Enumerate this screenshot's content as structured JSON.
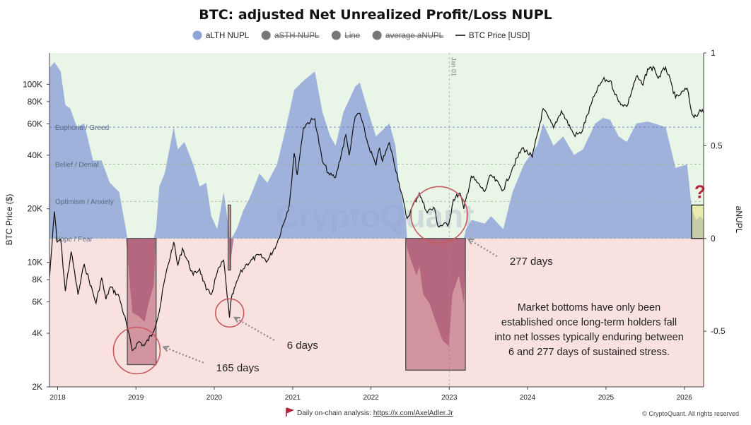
{
  "chart_data": {
    "type": "area",
    "title": "BTC: adjusted Net Unrealized Profit/Loss NUPL",
    "legend": [
      {
        "name": "aLTH NUPL",
        "color": "#8fa3d6",
        "hidden": false,
        "kind": "area"
      },
      {
        "name": "aSTH NUPL",
        "color": "#777777",
        "hidden": true,
        "kind": "dot"
      },
      {
        "name": "Line",
        "color": "#777777",
        "hidden": true,
        "kind": "dot"
      },
      {
        "name": "average aNUPL",
        "color": "#777777",
        "hidden": true,
        "kind": "dot"
      },
      {
        "name": "BTC Price [USD]",
        "color": "#111111",
        "hidden": false,
        "kind": "line"
      }
    ],
    "legend_position": "top-center",
    "x_ticks": [
      "2018",
      "2019",
      "2020",
      "2021",
      "2022",
      "2023",
      "2024",
      "2025",
      "2026"
    ],
    "x_range": [
      "2017-11-24",
      "2026-04-01"
    ],
    "y_left": {
      "label": "BTC Price ($)",
      "scale": "log",
      "range": [
        2000,
        150000
      ],
      "ticks": [
        {
          "v": 2000,
          "t": "2K"
        },
        {
          "v": 4000,
          "t": "4K"
        },
        {
          "v": 6000,
          "t": "6K"
        },
        {
          "v": 8000,
          "t": "8K"
        },
        {
          "v": 10000,
          "t": "10K"
        },
        {
          "v": 20000,
          "t": "20K"
        },
        {
          "v": 40000,
          "t": "40K"
        },
        {
          "v": 60000,
          "t": "60K"
        },
        {
          "v": 80000,
          "t": "80K"
        },
        {
          "v": 100000,
          "t": "100K"
        }
      ]
    },
    "y_right": {
      "label": "aNUPL",
      "scale": "linear",
      "range": [
        -0.8,
        1.0
      ],
      "ticks": [
        {
          "v": 1,
          "t": "1"
        },
        {
          "v": 0.5,
          "t": "0.5"
        },
        {
          "v": 0,
          "t": "0"
        },
        {
          "v": -0.5,
          "t": "-0.5"
        }
      ]
    },
    "zones": [
      {
        "label": "Euphoria / Greed",
        "value": 0.6
      },
      {
        "label": "Belief / Denial",
        "value": 0.4
      },
      {
        "label": "Optimism / Anxiety",
        "value": 0.2
      },
      {
        "label": "Hope / Fear",
        "value": 0.0
      }
    ],
    "zone_colors": {
      "positive_bg": "#e9f5e6",
      "negative_bg": "#f8e1de",
      "area_pos": "#91a6d8",
      "area_neg": "#b06a8e"
    },
    "vline": {
      "date": "2023-01-01",
      "label": "Jan 01"
    },
    "watermark": "CryptoQuant",
    "series": [
      {
        "name": "aLTH NUPL",
        "axis": "right",
        "points": [
          [
            "2017-11-24",
            0.92
          ],
          [
            "2017-12-17",
            0.95
          ],
          [
            "2018-01-15",
            0.9
          ],
          [
            "2018-02-06",
            0.72
          ],
          [
            "2018-03-01",
            0.7
          ],
          [
            "2018-04-01",
            0.6
          ],
          [
            "2018-05-05",
            0.62
          ],
          [
            "2018-06-15",
            0.42
          ],
          [
            "2018-07-25",
            0.42
          ],
          [
            "2018-09-01",
            0.3
          ],
          [
            "2018-10-15",
            0.25
          ],
          [
            "2018-11-15",
            0.05
          ],
          [
            "2018-11-22",
            -0.08
          ],
          [
            "2018-12-15",
            -0.4
          ],
          [
            "2019-01-15",
            -0.42
          ],
          [
            "2019-02-10",
            -0.45
          ],
          [
            "2019-03-01",
            -0.35
          ],
          [
            "2019-03-25",
            -0.25
          ],
          [
            "2019-04-05",
            0.05
          ],
          [
            "2019-04-20",
            0.28
          ],
          [
            "2019-05-15",
            0.35
          ],
          [
            "2019-06-26",
            0.6
          ],
          [
            "2019-07-15",
            0.48
          ],
          [
            "2019-08-15",
            0.52
          ],
          [
            "2019-09-25",
            0.4
          ],
          [
            "2019-10-25",
            0.28
          ],
          [
            "2019-11-25",
            0.3
          ],
          [
            "2019-12-18",
            0.12
          ],
          [
            "2020-01-15",
            0.05
          ],
          [
            "2020-02-14",
            0.25
          ],
          [
            "2020-03-10",
            0.05
          ],
          [
            "2020-03-12",
            -0.18
          ],
          [
            "2020-03-20",
            -0.1
          ],
          [
            "2020-04-01",
            0.02
          ],
          [
            "2020-04-15",
            0.05
          ],
          [
            "2020-05-15",
            0.15
          ],
          [
            "2020-06-15",
            0.22
          ],
          [
            "2020-07-30",
            0.35
          ],
          [
            "2020-09-05",
            0.3
          ],
          [
            "2020-10-20",
            0.4
          ],
          [
            "2020-12-01",
            0.6
          ],
          [
            "2021-01-08",
            0.8
          ],
          [
            "2021-02-20",
            0.85
          ],
          [
            "2021-04-14",
            0.9
          ],
          [
            "2021-05-20",
            0.68
          ],
          [
            "2021-06-25",
            0.55
          ],
          [
            "2021-07-20",
            0.5
          ],
          [
            "2021-08-25",
            0.68
          ],
          [
            "2021-10-20",
            0.82
          ],
          [
            "2021-11-10",
            0.84
          ],
          [
            "2021-12-20",
            0.68
          ],
          [
            "2022-01-24",
            0.55
          ],
          [
            "2022-03-28",
            0.62
          ],
          [
            "2022-04-25",
            0.5
          ],
          [
            "2022-05-12",
            0.3
          ],
          [
            "2022-06-13",
            0.1
          ],
          [
            "2022-06-18",
            -0.05
          ],
          [
            "2022-07-01",
            -0.1
          ],
          [
            "2022-08-01",
            -0.2
          ],
          [
            "2022-08-15",
            -0.15
          ],
          [
            "2022-09-01",
            -0.3
          ],
          [
            "2022-10-01",
            -0.35
          ],
          [
            "2022-11-09",
            -0.48
          ],
          [
            "2022-12-01",
            -0.55
          ],
          [
            "2022-12-30",
            -0.58
          ],
          [
            "2023-01-15",
            -0.3
          ],
          [
            "2023-02-15",
            -0.2
          ],
          [
            "2023-03-10",
            -0.35
          ],
          [
            "2023-03-20",
            0.05
          ],
          [
            "2023-04-15",
            0.1
          ],
          [
            "2023-06-15",
            0.08
          ],
          [
            "2023-07-15",
            0.12
          ],
          [
            "2023-09-10",
            0.05
          ],
          [
            "2023-10-23",
            0.25
          ],
          [
            "2023-12-15",
            0.4
          ],
          [
            "2024-02-15",
            0.5
          ],
          [
            "2024-03-14",
            0.62
          ],
          [
            "2024-05-01",
            0.5
          ],
          [
            "2024-06-15",
            0.55
          ],
          [
            "2024-08-05",
            0.45
          ],
          [
            "2024-09-15",
            0.48
          ],
          [
            "2024-11-12",
            0.62
          ],
          [
            "2024-12-17",
            0.65
          ],
          [
            "2025-01-20",
            0.64
          ],
          [
            "2025-03-01",
            0.55
          ],
          [
            "2025-04-08",
            0.52
          ],
          [
            "2025-05-22",
            0.62
          ],
          [
            "2025-07-14",
            0.63
          ],
          [
            "2025-08-14",
            0.62
          ],
          [
            "2025-10-06",
            0.6
          ],
          [
            "2025-11-21",
            0.38
          ],
          [
            "2026-01-14",
            0.4
          ],
          [
            "2026-02-06",
            0.15
          ],
          [
            "2026-02-25",
            0.1
          ],
          [
            "2026-03-15",
            0.12
          ],
          [
            "2026-04-01",
            0.1
          ]
        ]
      },
      {
        "name": "BTC Price [USD]",
        "axis": "left",
        "points": [
          [
            "2017-11-24",
            8200
          ],
          [
            "2017-12-17",
            19300
          ],
          [
            "2017-12-30",
            13000
          ],
          [
            "2018-01-15",
            13500
          ],
          [
            "2018-02-06",
            6900
          ],
          [
            "2018-03-05",
            11500
          ],
          [
            "2018-04-06",
            6600
          ],
          [
            "2018-05-05",
            9800
          ],
          [
            "2018-06-29",
            5900
          ],
          [
            "2018-07-25",
            8200
          ],
          [
            "2018-08-14",
            6200
          ],
          [
            "2018-09-04",
            7300
          ],
          [
            "2018-10-15",
            6400
          ],
          [
            "2018-11-20",
            4400
          ],
          [
            "2018-12-15",
            3200
          ],
          [
            "2019-01-15",
            3600
          ],
          [
            "2019-02-08",
            3400
          ],
          [
            "2019-03-20",
            4000
          ],
          [
            "2019-04-20",
            5300
          ],
          [
            "2019-05-15",
            8000
          ],
          [
            "2019-06-26",
            13000
          ],
          [
            "2019-07-15",
            9600
          ],
          [
            "2019-08-06",
            12000
          ],
          [
            "2019-09-25",
            8500
          ],
          [
            "2019-10-25",
            9200
          ],
          [
            "2019-11-25",
            7000
          ],
          [
            "2019-12-18",
            6600
          ],
          [
            "2020-01-15",
            8800
          ],
          [
            "2020-02-14",
            10300
          ],
          [
            "2020-03-12",
            4900
          ],
          [
            "2020-03-20",
            6200
          ],
          [
            "2020-04-29",
            8600
          ],
          [
            "2020-06-01",
            9800
          ],
          [
            "2020-07-27",
            11000
          ],
          [
            "2020-09-05",
            10200
          ],
          [
            "2020-10-21",
            12900
          ],
          [
            "2020-12-16",
            21000
          ],
          [
            "2021-01-08",
            41000
          ],
          [
            "2021-01-22",
            31000
          ],
          [
            "2021-02-20",
            57000
          ],
          [
            "2021-03-13",
            61000
          ],
          [
            "2021-04-14",
            64000
          ],
          [
            "2021-05-19",
            37000
          ],
          [
            "2021-06-22",
            31000
          ],
          [
            "2021-07-20",
            30000
          ],
          [
            "2021-09-06",
            52000
          ],
          [
            "2021-09-21",
            40000
          ],
          [
            "2021-10-20",
            66000
          ],
          [
            "2021-11-10",
            69000
          ],
          [
            "2021-12-18",
            46000
          ],
          [
            "2022-01-24",
            35000
          ],
          [
            "2022-02-10",
            44000
          ],
          [
            "2022-02-24",
            37000
          ],
          [
            "2022-03-28",
            47000
          ],
          [
            "2022-05-12",
            28000
          ],
          [
            "2022-06-18",
            17600
          ],
          [
            "2022-07-05",
            19500
          ],
          [
            "2022-08-14",
            24500
          ],
          [
            "2022-09-15",
            19500
          ],
          [
            "2022-10-25",
            20000
          ],
          [
            "2022-11-09",
            16000
          ],
          [
            "2022-12-30",
            16500
          ],
          [
            "2023-01-20",
            22500
          ],
          [
            "2023-02-20",
            24500
          ],
          [
            "2023-03-10",
            20000
          ],
          [
            "2023-04-14",
            30500
          ],
          [
            "2023-06-15",
            25000
          ],
          [
            "2023-07-14",
            31000
          ],
          [
            "2023-09-10",
            25500
          ],
          [
            "2023-10-23",
            34000
          ],
          [
            "2023-12-08",
            44000
          ],
          [
            "2024-01-23",
            39000
          ],
          [
            "2024-03-14",
            73000
          ],
          [
            "2024-05-01",
            57000
          ],
          [
            "2024-06-07",
            71000
          ],
          [
            "2024-08-05",
            52000
          ],
          [
            "2024-09-06",
            53000
          ],
          [
            "2024-11-12",
            89000
          ],
          [
            "2024-12-17",
            106000
          ],
          [
            "2025-01-20",
            105000
          ],
          [
            "2025-02-28",
            80000
          ],
          [
            "2025-04-08",
            75000
          ],
          [
            "2025-05-22",
            111000
          ],
          [
            "2025-06-22",
            99000
          ],
          [
            "2025-07-14",
            122000
          ],
          [
            "2025-08-14",
            124000
          ],
          [
            "2025-09-01",
            108000
          ],
          [
            "2025-10-06",
            125000
          ],
          [
            "2025-11-21",
            84000
          ],
          [
            "2025-12-15",
            88000
          ],
          [
            "2026-01-14",
            95000
          ],
          [
            "2026-02-06",
            68000
          ],
          [
            "2026-02-25",
            66000
          ],
          [
            "2026-03-15",
            72000
          ],
          [
            "2026-04-01",
            69000
          ]
        ]
      }
    ],
    "highlight_boxes": [
      {
        "from": "2018-11-22",
        "to": "2019-04-05",
        "y_from": 0.0,
        "y_to": -0.68,
        "style": "stress"
      },
      {
        "from": "2020-03-06",
        "to": "2020-03-18",
        "y_from": 0.18,
        "y_to": -0.17,
        "style": "stress"
      },
      {
        "from": "2022-06-12",
        "to": "2023-03-17",
        "y_from": 0.0,
        "y_to": -0.71,
        "style": "stress"
      },
      {
        "from": "2026-02-04",
        "to": "2026-04-06",
        "y_from": 0.18,
        "y_to": 0.0,
        "style": "current"
      }
    ],
    "circles": [
      {
        "date": "2019-01-05",
        "price": 3200,
        "r": 33
      },
      {
        "date": "2020-03-13",
        "price": 5200,
        "r": 20
      },
      {
        "date": "2022-11-15",
        "price": 18500,
        "r": 40
      }
    ],
    "annotations": [
      {
        "text": "165 days",
        "date": "2020-01-10",
        "price": 2450,
        "arrow_to": [
          "2019-05-10",
          3350
        ]
      },
      {
        "text": "6 days",
        "date": "2020-12-05",
        "price": 3280,
        "arrow_to": [
          "2020-04-05",
          4900
        ]
      },
      {
        "text": "277 days",
        "date": "2023-10-10",
        "price": 9700,
        "arrow_to": [
          "2023-04-01",
          13500
        ]
      },
      {
        "text": "?",
        "date": "2026-03-15",
        "price": 23000,
        "color": "#b3243a"
      }
    ],
    "note_lines": [
      "Market bottoms have only been",
      "established once long-term holders fall",
      "into net losses typically enduring between",
      "6 and 277 days of sustained stress."
    ]
  },
  "footer": {
    "left_text": "Daily on-chain analysis: ",
    "link_text": "https://x.com/AxelAdler.Jr",
    "right_text": "© CryptoQuant. All rights reserved"
  }
}
